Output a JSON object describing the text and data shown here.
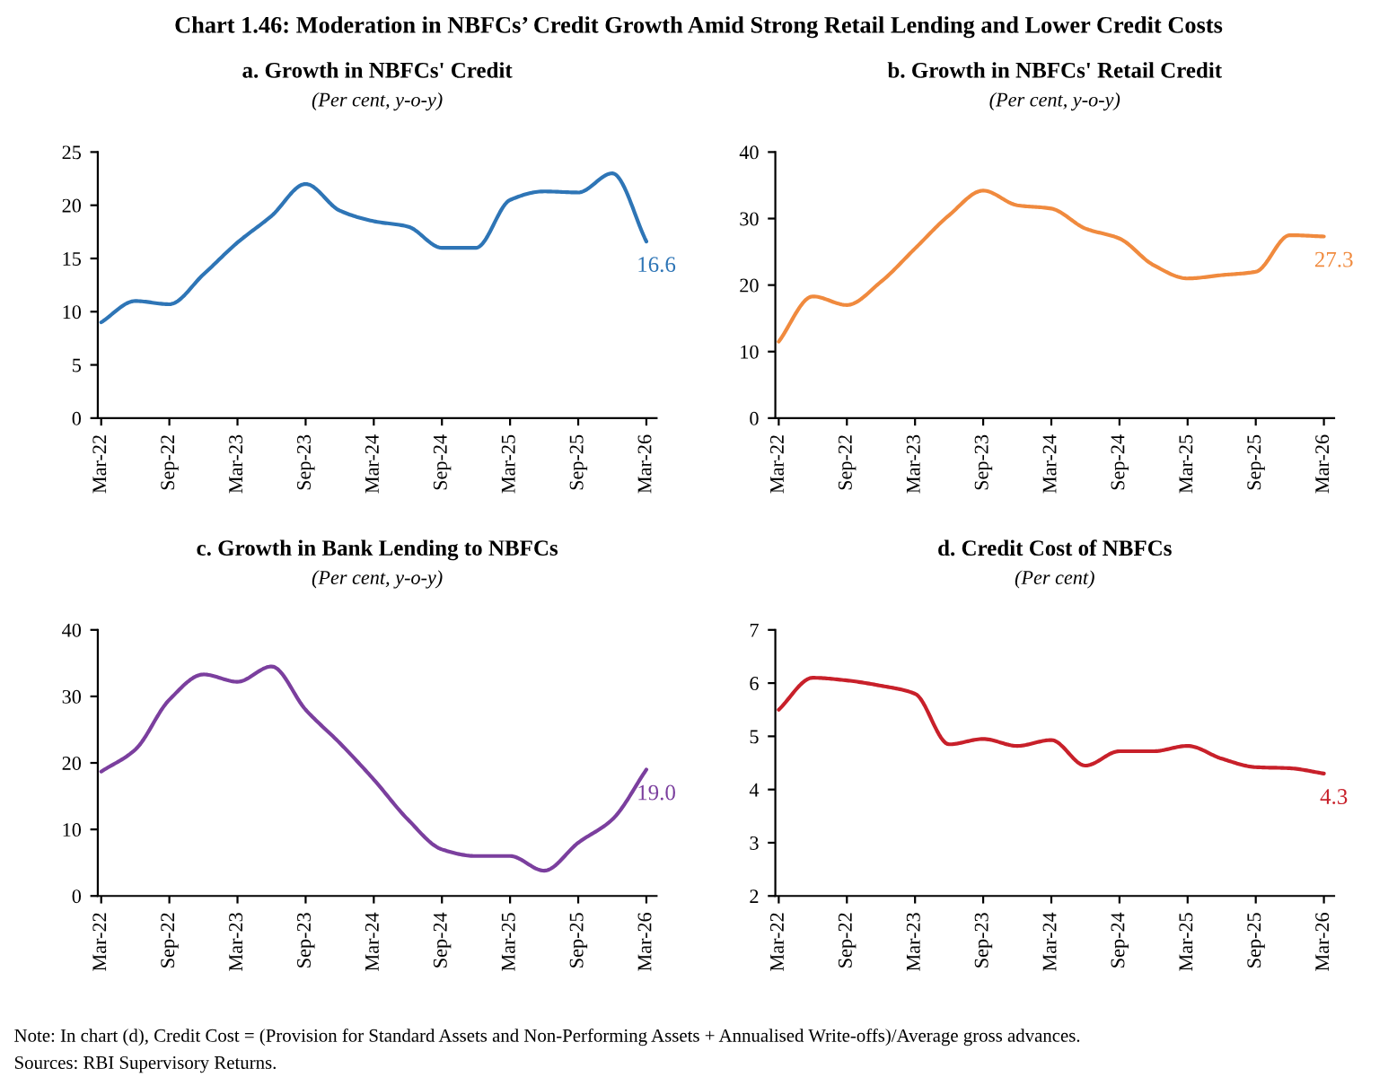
{
  "chart_data": [
    {
      "type": "other",
      "title": "Chart 1.46: Moderation in NBFCs’ Credit Growth Amid Strong Retail Lending and Lower Credit Costs",
      "annotations": [
        "Note: In chart (d), Credit Cost = (Provision for Standard Assets and Non-Performing Assets + Annualised Write-offs)/Average gross advances.",
        "Sources: RBI Supervisory Returns."
      ]
    },
    {
      "type": "line",
      "title": "a. Growth in NBFCs' Credit",
      "subtitle": "(Per cent, y-o-y)",
      "categories": [
        "Mar-22",
        null,
        "Sep-22",
        null,
        "Mar-23",
        null,
        "Sep-23",
        null,
        "Mar-24",
        null,
        "Sep-24",
        null,
        "Mar-25",
        null,
        "Sep-25",
        null,
        "Mar-26"
      ],
      "ylim": [
        0,
        25
      ],
      "yticks": [
        0,
        5,
        10,
        15,
        20,
        25
      ],
      "grid": false,
      "legend": false,
      "series": [
        {
          "color": "#2e75b6",
          "values": [
            9,
            11,
            10.7,
            13.5,
            16.5,
            19,
            22,
            19.5,
            18.5,
            18,
            16,
            16,
            20.5,
            21.3,
            21.2,
            23,
            16.6
          ],
          "value_labels": [
            null,
            null,
            null,
            null,
            null,
            null,
            null,
            null,
            null,
            null,
            null,
            null,
            null,
            null,
            null,
            null,
            "16.6"
          ]
        }
      ]
    },
    {
      "type": "line",
      "title": "b. Growth in NBFCs' Retail Credit",
      "subtitle": "(Per cent, y-o-y)",
      "categories": [
        "Mar-22",
        null,
        "Sep-22",
        null,
        "Mar-23",
        null,
        "Sep-23",
        null,
        "Mar-24",
        null,
        "Sep-24",
        null,
        "Mar-25",
        null,
        "Sep-25",
        null,
        "Mar-26"
      ],
      "ylim": [
        0,
        40
      ],
      "yticks": [
        0,
        10,
        20,
        30,
        40
      ],
      "grid": false,
      "legend": false,
      "series": [
        {
          "color": "#f08a3e",
          "values": [
            11.5,
            18.3,
            17,
            20.5,
            25.5,
            30.5,
            34.2,
            32,
            31.5,
            28.5,
            27,
            23,
            21,
            21.5,
            22,
            27.5,
            27.3
          ],
          "value_labels": [
            null,
            null,
            null,
            null,
            null,
            null,
            null,
            null,
            null,
            null,
            null,
            null,
            null,
            null,
            null,
            null,
            "27.3"
          ]
        }
      ]
    },
    {
      "type": "line",
      "title": "c. Growth in Bank Lending to NBFCs",
      "subtitle": "(Per cent, y-o-y)",
      "categories": [
        "Mar-22",
        null,
        "Sep-22",
        null,
        "Mar-23",
        null,
        "Sep-23",
        null,
        "Mar-24",
        null,
        "Sep-24",
        null,
        "Mar-25",
        null,
        "Sep-25",
        null,
        "Mar-26"
      ],
      "ylim": [
        0,
        40
      ],
      "yticks": [
        0,
        10,
        20,
        30,
        40
      ],
      "grid": false,
      "legend": false,
      "series": [
        {
          "color": "#7b3f9e",
          "values": [
            18.7,
            22,
            29.5,
            33.3,
            32.2,
            34.5,
            28,
            23,
            17.5,
            11.5,
            7,
            6,
            6,
            3.8,
            8,
            11.5,
            19.0
          ],
          "value_labels": [
            null,
            null,
            null,
            null,
            null,
            null,
            null,
            null,
            null,
            null,
            null,
            null,
            null,
            null,
            null,
            null,
            "19.0"
          ]
        }
      ]
    },
    {
      "type": "line",
      "title": "d. Credit Cost of NBFCs",
      "subtitle": "(Per cent)",
      "categories": [
        "Mar-22",
        null,
        "Sep-22",
        null,
        "Mar-23",
        null,
        "Sep-23",
        null,
        "Mar-24",
        null,
        "Sep-24",
        null,
        "Mar-25",
        null,
        "Sep-25",
        null,
        "Mar-26"
      ],
      "ylim": [
        2,
        7
      ],
      "yticks": [
        2,
        3,
        4,
        5,
        6,
        7
      ],
      "grid": false,
      "legend": false,
      "series": [
        {
          "color": "#c8202a",
          "values": [
            5.5,
            6.1,
            6.05,
            5.95,
            5.8,
            4.85,
            4.95,
            4.82,
            4.93,
            4.45,
            4.72,
            4.72,
            4.82,
            4.58,
            4.42,
            4.4,
            4.3
          ],
          "value_labels": [
            null,
            null,
            null,
            null,
            null,
            null,
            null,
            null,
            null,
            null,
            null,
            null,
            null,
            null,
            null,
            null,
            "4.3"
          ]
        }
      ]
    }
  ]
}
